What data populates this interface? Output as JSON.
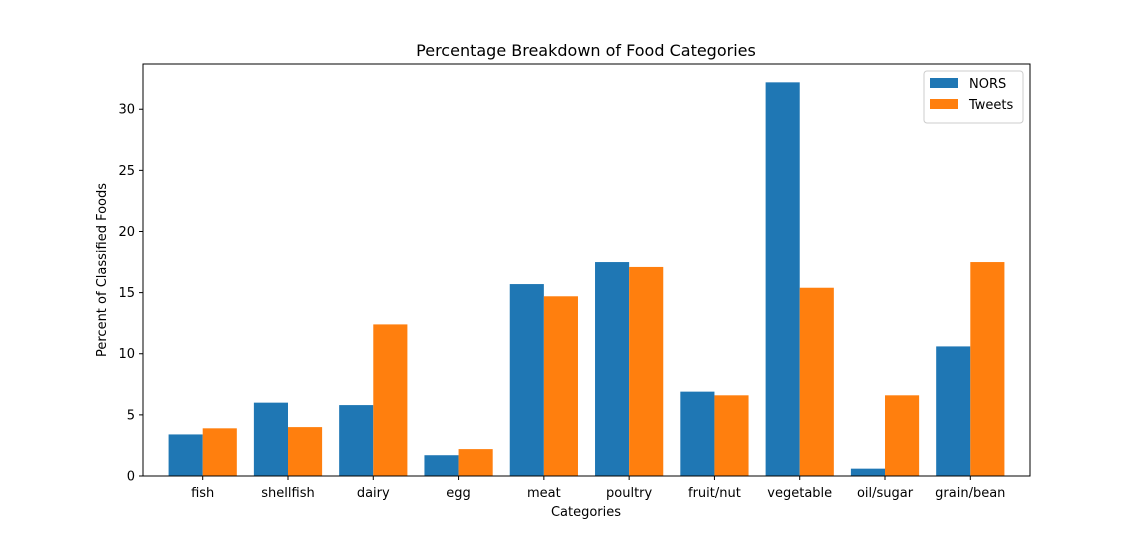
{
  "chart_data": {
    "type": "bar",
    "title": "Percentage Breakdown of Food Categories",
    "xlabel": "Categories",
    "ylabel": "Percent of Classified Foods",
    "ylim": [
      0,
      33.7
    ],
    "yticks": [
      0,
      5,
      10,
      15,
      20,
      25,
      30
    ],
    "categories": [
      "fish",
      "shellfish",
      "dairy",
      "egg",
      "meat",
      "poultry",
      "fruit/nut",
      "vegetable",
      "oil/sugar",
      "grain/bean"
    ],
    "series": [
      {
        "name": "NORS",
        "color": "#1f77b4",
        "values": [
          3.4,
          6.0,
          5.8,
          1.7,
          15.7,
          17.5,
          6.9,
          32.2,
          0.6,
          10.6
        ]
      },
      {
        "name": "Tweets",
        "color": "#ff7f0e",
        "values": [
          3.9,
          4.0,
          12.4,
          2.2,
          14.7,
          17.1,
          6.6,
          15.4,
          6.6,
          17.5
        ]
      }
    ],
    "legend_position": "top-right",
    "grid": false
  }
}
